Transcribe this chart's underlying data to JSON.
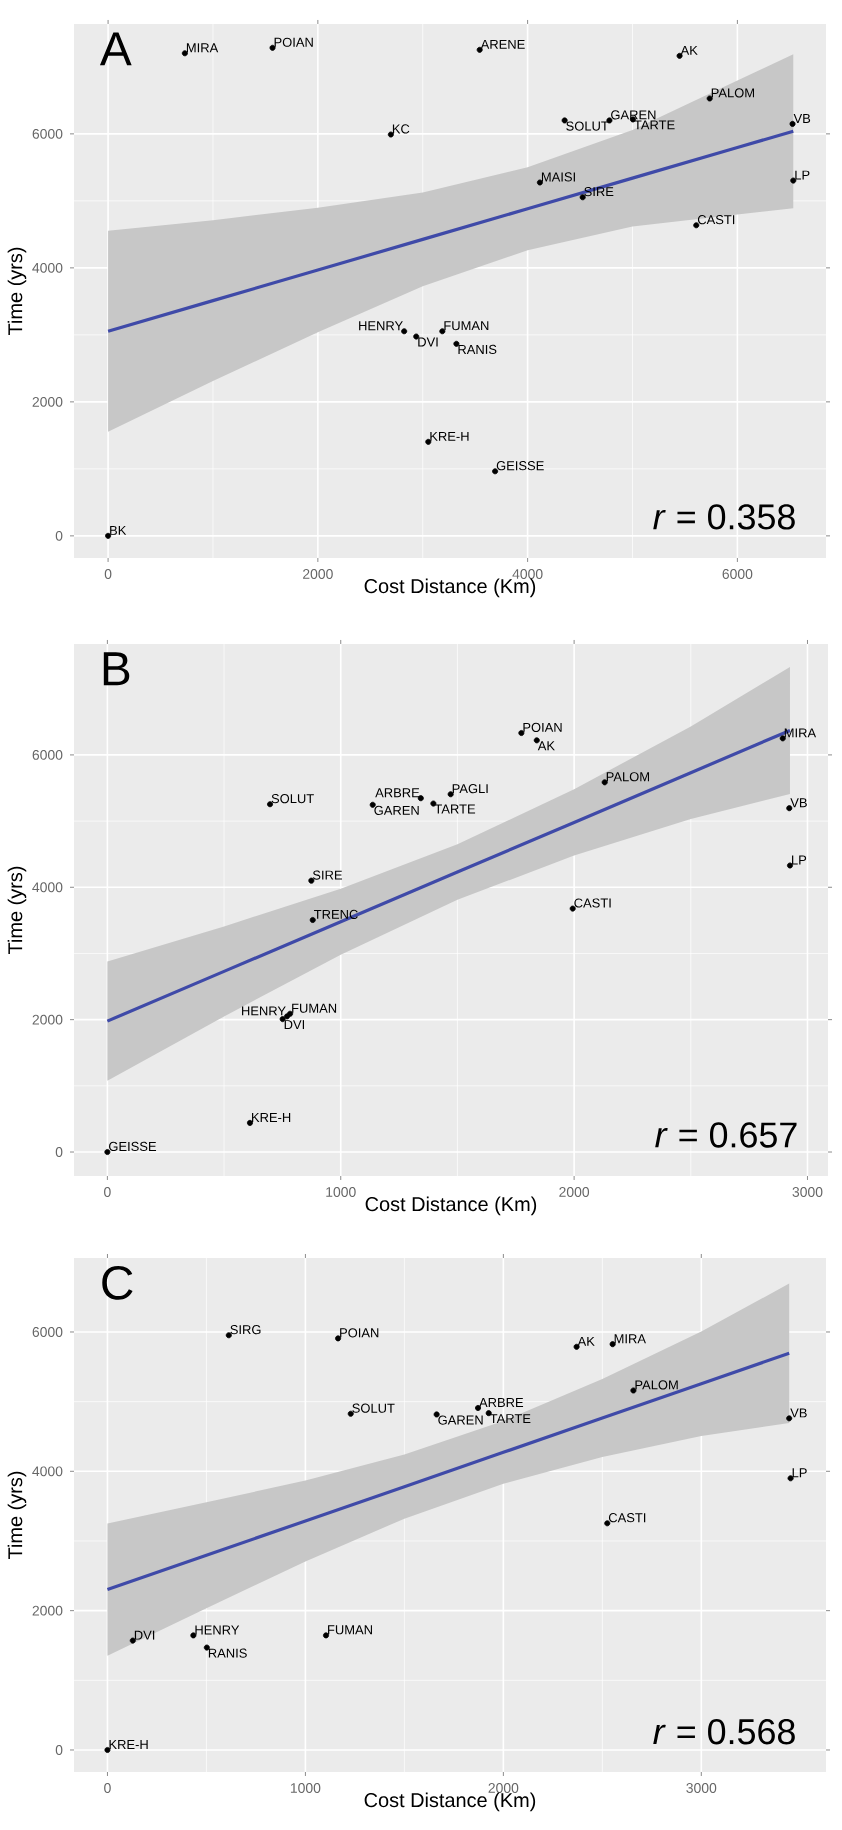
{
  "chart_data": [
    {
      "type": "scatter",
      "title": "A",
      "xlabel": "Cost Distance (Km)",
      "ylabel": "Time (yrs)",
      "annotations": [
        "*r* = 0.358"
      ],
      "xlim": [
        -325,
        6845
      ],
      "ylim": [
        -330,
        7640
      ],
      "xticks": [
        0,
        2000,
        4000,
        6000
      ],
      "yticks": [
        0,
        2000,
        4000,
        6000
      ],
      "grid": true,
      "series": [
        {
          "type": "scatter",
          "color": "#000000",
          "x": [
            732,
            1568,
            3543,
            5449,
            5736,
            4353,
            4780,
            5004,
            6526,
            2696,
            4117,
            4525,
            6533,
            5608,
            2823,
            2938,
            3187,
            3321,
            3053,
            3690,
            0
          ],
          "values": [
            7203,
            7284,
            7254,
            7164,
            6528,
            6200,
            6200,
            6215,
            6149,
            5990,
            5274,
            5054,
            5303,
            4636,
            3054,
            2975,
            3054,
            2866,
            1403,
            964,
            0
          ],
          "value_labels": [
            "MIRA",
            "POIAN",
            "ARENE",
            "AK",
            "PALOM",
            "SOLUT",
            "GAREN",
            "TARTE",
            "VB",
            "KC",
            "MAISI",
            "SIRE",
            "LP",
            "CASTI",
            "HENRY",
            "DVI",
            "FUMAN",
            "RANIS",
            "KRE-H",
            "GEISSE",
            "BK"
          ]
        },
        {
          "type": "line",
          "color": "#3f4aa8",
          "x": [
            0,
            1000,
            2000,
            3000,
            4000,
            5000,
            6000,
            6533
          ],
          "values": [
            3054,
            3511,
            3968,
            4425,
            4882,
            5339,
            5796,
            6040
          ],
          "lower": [
            1554,
            2311,
            3038,
            3725,
            4262,
            4619,
            4796,
            4890
          ],
          "upper": [
            4554,
            4711,
            4898,
            5125,
            5502,
            6059,
            6796,
            7190
          ]
        }
      ]
    },
    {
      "type": "scatter",
      "title": "B",
      "xlabel": "Cost Distance (Km)",
      "ylabel": "Time (yrs)",
      "annotations": [
        "*r* = 0.657"
      ],
      "xlim": [
        -143,
        3088
      ],
      "ylim": [
        -362,
        7676
      ],
      "xticks": [
        0,
        1000,
        2000,
        3000
      ],
      "yticks": [
        0,
        2000,
        4000,
        6000
      ],
      "grid": true,
      "series": [
        {
          "type": "scatter",
          "color": "#000000",
          "x": [
            1774,
            1840,
            2894,
            2131,
            697,
            1137,
            1343,
            1397,
            1471,
            2922,
            2925,
            874,
            880,
            1994,
            783,
            751,
            770,
            611,
            0
          ],
          "values": [
            6331,
            6220,
            6250,
            5586,
            5255,
            5246,
            5346,
            5265,
            5406,
            5195,
            4329,
            4100,
            3506,
            3678,
            2089,
            2008,
            2050,
            440,
            0
          ],
          "value_labels": [
            "POIAN",
            "AK",
            "MIRA",
            "PALOM",
            "SOLUT",
            "GAREN",
            "ARBRE",
            "TARTE",
            "PAGLI",
            "VB",
            "LP",
            "SIRE",
            "TRENC",
            "CASTI",
            "FUMAN",
            "DVI",
            "HENRY",
            "KRE-H",
            "GEISSE"
          ]
        },
        {
          "type": "line",
          "color": "#3f4aa8",
          "x": [
            0,
            500,
            1000,
            1500,
            2000,
            2500,
            2925
          ],
          "values": [
            1978,
            2729,
            3479,
            4230,
            4980,
            5731,
            6370
          ],
          "lower": [
            1078,
            2049,
            2979,
            3810,
            4480,
            5031,
            5410
          ],
          "upper": [
            2878,
            3409,
            3979,
            4650,
            5480,
            6431,
            7330
          ]
        }
      ]
    },
    {
      "type": "scatter",
      "title": "C",
      "xlabel": "Cost Distance (Km)",
      "ylabel": "Time (yrs)",
      "annotations": [
        "*r* = 0.568"
      ],
      "xlim": [
        -169,
        3630
      ],
      "ylim": [
        -316,
        7062
      ],
      "xticks": [
        0,
        1000,
        2000,
        3000
      ],
      "yticks": [
        0,
        2000,
        4000,
        6000
      ],
      "grid": true,
      "series": [
        {
          "type": "scatter",
          "color": "#000000",
          "x": [
            613,
            1165,
            2370,
            2552,
            2657,
            1229,
            1663,
            1872,
            1926,
            3444,
            3451,
            2525,
            128,
            434,
            502,
            1104,
            0
          ],
          "values": [
            5953,
            5908,
            5787,
            5825,
            5160,
            4826,
            4816,
            4909,
            4835,
            4760,
            3900,
            3254,
            1570,
            1645,
            1470,
            1645,
            0
          ],
          "value_labels": [
            "SIRG",
            "POIAN",
            "AK",
            "MIRA",
            "PALOM",
            "SOLUT",
            "GAREN",
            "ARBRE",
            "TARTE",
            "VB",
            "LP",
            "CASTI",
            "DVI",
            "HENRY",
            "RANIS",
            "FUMAN",
            "KRE-H"
          ]
        },
        {
          "type": "line",
          "color": "#3f4aa8",
          "x": [
            0,
            500,
            1000,
            1500,
            2000,
            2500,
            3000,
            3444
          ],
          "values": [
            2302,
            2795,
            3287,
            3780,
            4272,
            4765,
            5257,
            5695
          ],
          "lower": [
            1352,
            2035,
            2707,
            3320,
            3822,
            4205,
            4507,
            4695
          ],
          "upper": [
            3252,
            3555,
            3867,
            4240,
            4722,
            5325,
            6007,
            6695
          ]
        }
      ]
    }
  ]
}
